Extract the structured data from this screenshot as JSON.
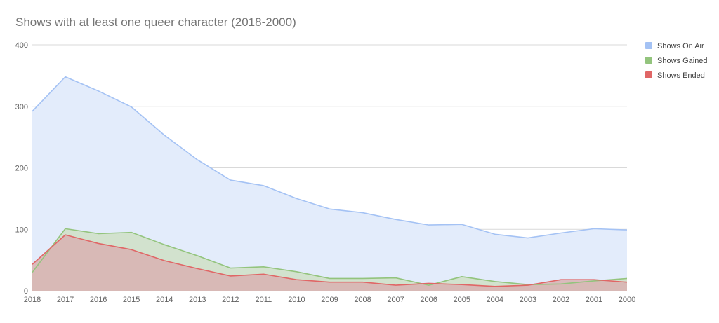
{
  "chart_data": {
    "type": "area",
    "title": "Shows with at least one queer character (2018-2000)",
    "xlabel": "",
    "ylabel": "",
    "categories": [
      "2018",
      "2017",
      "2016",
      "2015",
      "2014",
      "2013",
      "2012",
      "2011",
      "2010",
      "2009",
      "2008",
      "2007",
      "2006",
      "2005",
      "2004",
      "2003",
      "2002",
      "2001",
      "2000"
    ],
    "ylim": [
      0,
      400
    ],
    "yticks": [
      "0",
      "100",
      "200",
      "300",
      "400"
    ],
    "grid": true,
    "legend_position": "right",
    "series": [
      {
        "name": "Shows On Air",
        "color": "#a4c2f4",
        "fill": "#e3ecfb",
        "values": [
          292,
          348,
          325,
          299,
          253,
          213,
          180,
          171,
          150,
          133,
          127,
          116,
          107,
          108,
          92,
          86,
          94,
          101,
          99
        ]
      },
      {
        "name": "Shows Gained",
        "color": "#93c47d",
        "fill": "#cfe1c5",
        "values": [
          30,
          101,
          93,
          95,
          75,
          57,
          37,
          39,
          31,
          20,
          20,
          21,
          9,
          23,
          15,
          10,
          11,
          16,
          20
        ]
      },
      {
        "name": "Shows Ended",
        "color": "#e06666",
        "fill": "#d9b2b2",
        "values": [
          43,
          91,
          77,
          67,
          49,
          36,
          24,
          27,
          18,
          14,
          14,
          9,
          12,
          10,
          7,
          9,
          18,
          18,
          14
        ]
      }
    ]
  }
}
